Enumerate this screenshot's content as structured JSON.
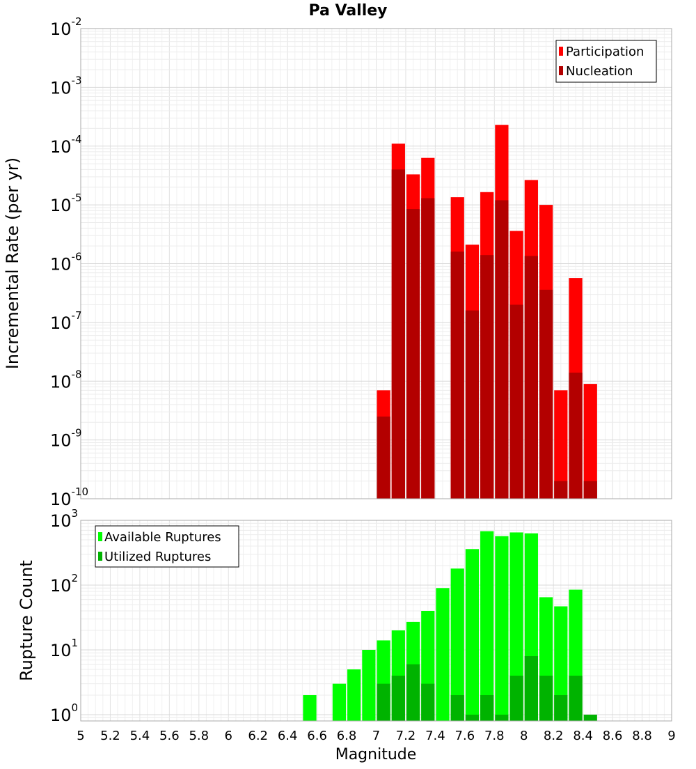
{
  "chart_data": [
    {
      "type": "bar",
      "title": "Pa Valley",
      "ylabel": "Incremental Rate (per yr)",
      "xlabel": "",
      "yscale": "log",
      "ylim": [
        1e-10,
        0.01
      ],
      "xlim": [
        5,
        9
      ],
      "yticks": [
        {
          "base": "10",
          "exp": "-10"
        },
        {
          "base": "10",
          "exp": "-9"
        },
        {
          "base": "10",
          "exp": "-8"
        },
        {
          "base": "10",
          "exp": "-7"
        },
        {
          "base": "10",
          "exp": "-6"
        },
        {
          "base": "10",
          "exp": "-5"
        },
        {
          "base": "10",
          "exp": "-4"
        },
        {
          "base": "10",
          "exp": "-3"
        },
        {
          "base": "10",
          "exp": "-2"
        }
      ],
      "legend_position": "top-right",
      "grid": true,
      "series": [
        {
          "name": "Participation",
          "color": "#ff0000",
          "points": [
            {
              "x": 7.05,
              "y": 7e-09
            },
            {
              "x": 7.15,
              "y": 0.00011
            },
            {
              "x": 7.25,
              "y": 3.3e-05
            },
            {
              "x": 7.35,
              "y": 6.3e-05
            },
            {
              "x": 7.55,
              "y": 1.35e-05
            },
            {
              "x": 7.65,
              "y": 2.1e-06
            },
            {
              "x": 7.75,
              "y": 1.65e-05
            },
            {
              "x": 7.85,
              "y": 0.00023
            },
            {
              "x": 7.95,
              "y": 3.6e-06
            },
            {
              "x": 8.05,
              "y": 2.65e-05
            },
            {
              "x": 8.15,
              "y": 1e-05
            },
            {
              "x": 8.25,
              "y": 7e-09
            },
            {
              "x": 8.35,
              "y": 5.7e-07
            },
            {
              "x": 8.45,
              "y": 9e-09
            }
          ]
        },
        {
          "name": "Nucleation",
          "color": "#b30000",
          "points": [
            {
              "x": 7.05,
              "y": 2.5e-09
            },
            {
              "x": 7.15,
              "y": 4e-05
            },
            {
              "x": 7.25,
              "y": 8.5e-06
            },
            {
              "x": 7.35,
              "y": 1.3e-05
            },
            {
              "x": 7.55,
              "y": 1.6e-06
            },
            {
              "x": 7.65,
              "y": 1.6e-07
            },
            {
              "x": 7.75,
              "y": 1.4e-06
            },
            {
              "x": 7.85,
              "y": 1.2e-05
            },
            {
              "x": 7.95,
              "y": 2e-07
            },
            {
              "x": 8.05,
              "y": 1.35e-06
            },
            {
              "x": 8.15,
              "y": 3.6e-07
            },
            {
              "x": 8.25,
              "y": 2e-10
            },
            {
              "x": 8.35,
              "y": 1.4e-08
            },
            {
              "x": 8.45,
              "y": 2e-10
            }
          ]
        }
      ]
    },
    {
      "type": "bar",
      "title": "",
      "ylabel": "Rupture Count",
      "xlabel": "Magnitude",
      "yscale": "log",
      "ylim": [
        0.8,
        1000
      ],
      "xlim": [
        5,
        9
      ],
      "xticks": [
        "5",
        "5.2",
        "5.4",
        "5.6",
        "5.8",
        "6",
        "6.2",
        "6.4",
        "6.6",
        "6.8",
        "7",
        "7.2",
        "7.4",
        "7.6",
        "7.8",
        "8",
        "8.2",
        "8.4",
        "8.6",
        "8.8",
        "9"
      ],
      "yticks": [
        {
          "base": "10",
          "exp": "0"
        },
        {
          "base": "10",
          "exp": "1"
        },
        {
          "base": "10",
          "exp": "2"
        },
        {
          "base": "10",
          "exp": "3"
        }
      ],
      "legend_position": "top-left",
      "grid": true,
      "series": [
        {
          "name": "Available Ruptures",
          "color": "#00ff00",
          "points": [
            {
              "x": 6.55,
              "y": 2
            },
            {
              "x": 6.75,
              "y": 3
            },
            {
              "x": 6.85,
              "y": 5
            },
            {
              "x": 6.95,
              "y": 10
            },
            {
              "x": 7.05,
              "y": 14
            },
            {
              "x": 7.15,
              "y": 20
            },
            {
              "x": 7.25,
              "y": 27
            },
            {
              "x": 7.35,
              "y": 40
            },
            {
              "x": 7.45,
              "y": 90
            },
            {
              "x": 7.55,
              "y": 180
            },
            {
              "x": 7.65,
              "y": 360
            },
            {
              "x": 7.75,
              "y": 680
            },
            {
              "x": 7.85,
              "y": 570
            },
            {
              "x": 7.95,
              "y": 650
            },
            {
              "x": 8.05,
              "y": 630
            },
            {
              "x": 8.15,
              "y": 65
            },
            {
              "x": 8.25,
              "y": 47
            },
            {
              "x": 8.35,
              "y": 85
            }
          ]
        },
        {
          "name": "Utilized Ruptures",
          "color": "#00b300",
          "points": [
            {
              "x": 7.05,
              "y": 3
            },
            {
              "x": 7.15,
              "y": 4
            },
            {
              "x": 7.25,
              "y": 6
            },
            {
              "x": 7.35,
              "y": 3
            },
            {
              "x": 7.55,
              "y": 2
            },
            {
              "x": 7.65,
              "y": 1
            },
            {
              "x": 7.75,
              "y": 2
            },
            {
              "x": 7.85,
              "y": 1
            },
            {
              "x": 7.95,
              "y": 4
            },
            {
              "x": 8.05,
              "y": 8
            },
            {
              "x": 8.15,
              "y": 4
            },
            {
              "x": 8.25,
              "y": 2
            },
            {
              "x": 8.35,
              "y": 4
            },
            {
              "x": 8.45,
              "y": 1
            }
          ]
        }
      ]
    }
  ]
}
